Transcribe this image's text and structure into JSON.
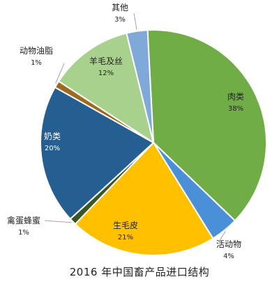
{
  "chart_data": {
    "type": "pie",
    "title": "2016 年中国畜产品进口结构",
    "start_angle_deg": -3,
    "slices": [
      {
        "name": "肉类",
        "value": 38,
        "label": "38%",
        "color": "#70ad47"
      },
      {
        "name": "活动物",
        "value": 4,
        "label": "4%",
        "color": "#4a90d9"
      },
      {
        "name": "生毛皮",
        "value": 21,
        "label": "21%",
        "color": "#ffc000"
      },
      {
        "name": "禽蛋蜂蜜",
        "value": 1,
        "label": "1%",
        "color": "#385723"
      },
      {
        "name": "奶类",
        "value": 20,
        "label": "20%",
        "color": "#255e91"
      },
      {
        "name": "动物油脂",
        "value": 1,
        "label": "1%",
        "color": "#9e6a1e"
      },
      {
        "name": "羊毛及丝",
        "value": 12,
        "label": "12%",
        "color": "#a9d18e"
      },
      {
        "name": "其他",
        "value": 3,
        "label": "3%",
        "color": "#7fa9d8"
      }
    ],
    "legend": "none"
  }
}
